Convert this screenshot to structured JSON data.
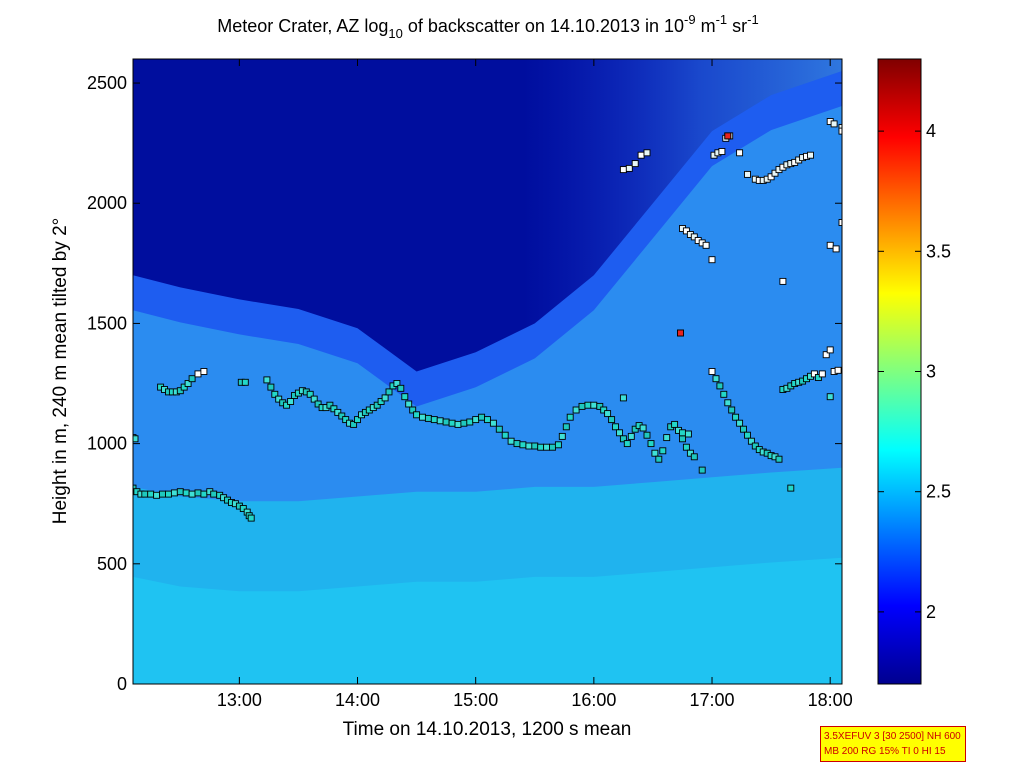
{
  "chart_data": {
    "type": "heatmap",
    "title": {
      "pre": "Meteor Crater, AZ log",
      "sub": "10",
      "mid": " of backscatter on 14.10.2013 in 10",
      "sup1": "-9",
      "mid2": " m",
      "sup2": "-1",
      "mid3": " sr",
      "sup3": "-1"
    },
    "xlabel": "Time on 14.10.2013, 1200 s mean",
    "ylabel": "Height in m, 240 m mean tilted by 2°",
    "xlim": [
      "12:06",
      "18:06"
    ],
    "ylim": [
      0,
      2600
    ],
    "x_ticks": [
      {
        "t": 13.0,
        "label": "13:00"
      },
      {
        "t": 14.0,
        "label": "14:00"
      },
      {
        "t": 15.0,
        "label": "15:00"
      },
      {
        "t": 16.0,
        "label": "16:00"
      },
      {
        "t": 17.0,
        "label": "17:00"
      },
      {
        "t": 18.0,
        "label": "18:00"
      }
    ],
    "y_ticks": [
      {
        "v": 0,
        "label": "0"
      },
      {
        "v": 500,
        "label": "500"
      },
      {
        "v": 1000,
        "label": "1000"
      },
      {
        "v": 1500,
        "label": "1500"
      },
      {
        "v": 2000,
        "label": "2000"
      },
      {
        "v": 2500,
        "label": "2500"
      }
    ],
    "colorbar": {
      "range": [
        1.7,
        4.3
      ],
      "colormap": "jet",
      "ticks": [
        {
          "v": 2,
          "label": "2"
        },
        {
          "v": 2.5,
          "label": "2.5"
        },
        {
          "v": 3,
          "label": "3"
        },
        {
          "v": 3.5,
          "label": "3.5"
        },
        {
          "v": 4,
          "label": "4"
        }
      ]
    },
    "field_columns": [
      {
        "t": "12:06",
        "bottom_layer_top": 820,
        "mixed_layer_top": 1700
      },
      {
        "t": "12:30",
        "bottom_layer_top": 780,
        "mixed_layer_top": 1650
      },
      {
        "t": "13:00",
        "bottom_layer_top": 760,
        "mixed_layer_top": 1600
      },
      {
        "t": "13:30",
        "bottom_layer_top": 760,
        "mixed_layer_top": 1560
      },
      {
        "t": "14:00",
        "bottom_layer_top": 780,
        "mixed_layer_top": 1480
      },
      {
        "t": "14:30",
        "bottom_layer_top": 800,
        "mixed_layer_top": 1300
      },
      {
        "t": "15:00",
        "bottom_layer_top": 800,
        "mixed_layer_top": 1380
      },
      {
        "t": "15:30",
        "bottom_layer_top": 820,
        "mixed_layer_top": 1500
      },
      {
        "t": "16:00",
        "bottom_layer_top": 820,
        "mixed_layer_top": 1700
      },
      {
        "t": "16:30",
        "bottom_layer_top": 840,
        "mixed_layer_top": 2000
      },
      {
        "t": "17:00",
        "bottom_layer_top": 860,
        "mixed_layer_top": 2300
      },
      {
        "t": "17:30",
        "bottom_layer_top": 880,
        "mixed_layer_top": 2450
      },
      {
        "t": "18:06",
        "bottom_layer_top": 900,
        "mixed_layer_top": 2550
      }
    ],
    "detections": [
      {
        "name": "lower layer",
        "points": [
          [
            "12:06",
            1025
          ],
          [
            "12:07",
            1020
          ],
          [
            "12:06",
            815
          ],
          [
            "12:08",
            800
          ],
          [
            "12:10",
            790
          ],
          [
            "12:12",
            790
          ],
          [
            "12:15",
            790
          ],
          [
            "12:18",
            785
          ],
          [
            "12:21",
            790
          ],
          [
            "12:24",
            790
          ],
          [
            "12:27",
            795
          ],
          [
            "12:30",
            800
          ],
          [
            "12:33",
            795
          ],
          [
            "12:36",
            790
          ],
          [
            "12:39",
            795
          ],
          [
            "12:42",
            790
          ],
          [
            "12:45",
            800
          ],
          [
            "12:47",
            790
          ],
          [
            "12:50",
            785
          ],
          [
            "12:52",
            775
          ],
          [
            "12:54",
            765
          ],
          [
            "12:56",
            755
          ],
          [
            "12:58",
            750
          ],
          [
            "13:00",
            740
          ],
          [
            "13:02",
            730
          ],
          [
            "13:04",
            715
          ],
          [
            "13:05",
            700
          ],
          [
            "13:06",
            690
          ]
        ]
      },
      {
        "name": "upper layer",
        "points": [
          [
            "12:20",
            1235
          ],
          [
            "12:22",
            1225
          ],
          [
            "12:24",
            1215
          ],
          [
            "12:26",
            1215
          ],
          [
            "12:28",
            1215
          ],
          [
            "12:30",
            1220
          ],
          [
            "12:32",
            1235
          ],
          [
            "12:34",
            1250
          ],
          [
            "12:36",
            1270
          ],
          [
            "12:39",
            1290
          ],
          [
            "12:42",
            1300
          ],
          [
            "13:01",
            1255
          ],
          [
            "13:03",
            1255
          ],
          [
            "13:14",
            1265
          ],
          [
            "13:16",
            1235
          ],
          [
            "13:18",
            1205
          ],
          [
            "13:20",
            1185
          ],
          [
            "13:22",
            1170
          ],
          [
            "13:24",
            1160
          ],
          [
            "13:26",
            1175
          ],
          [
            "13:28",
            1200
          ],
          [
            "13:30",
            1210
          ],
          [
            "13:32",
            1220
          ],
          [
            "13:34",
            1215
          ],
          [
            "13:36",
            1205
          ],
          [
            "13:38",
            1185
          ],
          [
            "13:40",
            1165
          ],
          [
            "13:42",
            1150
          ],
          [
            "13:44",
            1150
          ],
          [
            "13:46",
            1160
          ],
          [
            "13:48",
            1145
          ],
          [
            "13:50",
            1130
          ],
          [
            "13:52",
            1115
          ],
          [
            "13:54",
            1100
          ],
          [
            "13:56",
            1085
          ],
          [
            "13:58",
            1080
          ],
          [
            "14:00",
            1100
          ],
          [
            "14:02",
            1120
          ],
          [
            "14:04",
            1130
          ],
          [
            "14:06",
            1140
          ],
          [
            "14:08",
            1150
          ],
          [
            "14:10",
            1160
          ],
          [
            "14:12",
            1175
          ],
          [
            "14:14",
            1190
          ],
          [
            "14:16",
            1215
          ],
          [
            "14:18",
            1240
          ],
          [
            "14:20",
            1250
          ],
          [
            "14:22",
            1230
          ],
          [
            "14:24",
            1195
          ],
          [
            "14:26",
            1165
          ],
          [
            "14:28",
            1140
          ],
          [
            "14:30",
            1120
          ],
          [
            "14:33",
            1110
          ],
          [
            "14:36",
            1105
          ],
          [
            "14:39",
            1100
          ],
          [
            "14:42",
            1095
          ],
          [
            "14:45",
            1090
          ],
          [
            "14:48",
            1085
          ],
          [
            "14:51",
            1080
          ],
          [
            "14:54",
            1085
          ],
          [
            "14:57",
            1090
          ],
          [
            "15:00",
            1100
          ],
          [
            "15:03",
            1110
          ],
          [
            "15:06",
            1100
          ],
          [
            "15:09",
            1085
          ],
          [
            "15:12",
            1060
          ],
          [
            "15:15",
            1035
          ],
          [
            "15:18",
            1010
          ],
          [
            "15:21",
            1000
          ],
          [
            "15:24",
            995
          ],
          [
            "15:27",
            990
          ],
          [
            "15:30",
            990
          ],
          [
            "15:33",
            985
          ],
          [
            "15:36",
            985
          ],
          [
            "15:39",
            985
          ],
          [
            "15:42",
            995
          ],
          [
            "15:44",
            1030
          ],
          [
            "15:46",
            1070
          ],
          [
            "15:48",
            1110
          ],
          [
            "15:51",
            1140
          ],
          [
            "15:54",
            1155
          ],
          [
            "15:57",
            1160
          ],
          [
            "16:00",
            1160
          ],
          [
            "16:03",
            1155
          ],
          [
            "16:05",
            1140
          ],
          [
            "16:07",
            1125
          ],
          [
            "16:09",
            1100
          ],
          [
            "16:11",
            1070
          ],
          [
            "16:13",
            1045
          ],
          [
            "16:15",
            1020
          ],
          [
            "16:17",
            1000
          ],
          [
            "16:19",
            1030
          ],
          [
            "16:21",
            1060
          ],
          [
            "16:23",
            1075
          ],
          [
            "16:25",
            1065
          ],
          [
            "16:27",
            1035
          ],
          [
            "16:29",
            1000
          ],
          [
            "16:31",
            960
          ],
          [
            "16:33",
            935
          ],
          [
            "16:35",
            970
          ],
          [
            "16:37",
            1025
          ],
          [
            "16:39",
            1070
          ],
          [
            "16:41",
            1080
          ],
          [
            "16:43",
            1055
          ],
          [
            "16:45",
            1020
          ],
          [
            "16:47",
            985
          ],
          [
            "16:49",
            960
          ],
          [
            "16:51",
            945
          ],
          [
            "16:45",
            1045
          ],
          [
            "16:48",
            1040
          ],
          [
            "16:55",
            890
          ],
          [
            "17:00",
            1300
          ],
          [
            "17:02",
            1270
          ],
          [
            "17:04",
            1240
          ],
          [
            "17:06",
            1205
          ],
          [
            "17:08",
            1170
          ],
          [
            "17:10",
            1140
          ],
          [
            "17:12",
            1110
          ],
          [
            "17:14",
            1085
          ],
          [
            "17:16",
            1060
          ],
          [
            "17:18",
            1035
          ],
          [
            "17:20",
            1010
          ],
          [
            "17:22",
            990
          ],
          [
            "17:24",
            975
          ],
          [
            "17:26",
            965
          ],
          [
            "17:28",
            960
          ],
          [
            "17:30",
            950
          ],
          [
            "17:32",
            945
          ],
          [
            "17:34",
            935
          ],
          [
            "17:36",
            1225
          ],
          [
            "17:38",
            1230
          ],
          [
            "17:40",
            1240
          ],
          [
            "17:42",
            1250
          ],
          [
            "17:44",
            1255
          ],
          [
            "17:46",
            1260
          ],
          [
            "17:48",
            1270
          ],
          [
            "17:50",
            1280
          ],
          [
            "17:52",
            1290
          ],
          [
            "17:54",
            1275
          ],
          [
            "17:56",
            1290
          ],
          [
            "17:58",
            1370
          ],
          [
            "18:00",
            1390
          ],
          [
            "18:02",
            1300
          ],
          [
            "18:04",
            1305
          ],
          [
            "17:40",
            815
          ],
          [
            "18:00",
            1195
          ]
        ]
      },
      {
        "name": "elevated aerosol layer",
        "points": [
          [
            "16:15",
            2140
          ],
          [
            "16:18",
            2145
          ],
          [
            "16:21",
            2165
          ],
          [
            "16:24",
            2200
          ],
          [
            "16:27",
            2210
          ],
          [
            "16:45",
            1895
          ],
          [
            "16:47",
            1885
          ],
          [
            "16:49",
            1870
          ],
          [
            "16:51",
            1860
          ],
          [
            "16:53",
            1845
          ],
          [
            "16:55",
            1835
          ],
          [
            "16:57",
            1825
          ],
          [
            "17:00",
            1765
          ],
          [
            "17:01",
            2200
          ],
          [
            "17:03",
            2210
          ],
          [
            "17:05",
            2215
          ],
          [
            "17:07",
            2270
          ],
          [
            "17:09",
            2280
          ],
          [
            "17:14",
            2210
          ],
          [
            "17:18",
            2120
          ],
          [
            "17:22",
            2100
          ],
          [
            "17:24",
            2095
          ],
          [
            "17:26",
            2095
          ],
          [
            "17:28",
            2100
          ],
          [
            "17:30",
            2110
          ],
          [
            "17:32",
            2125
          ],
          [
            "17:34",
            2140
          ],
          [
            "17:36",
            2150
          ],
          [
            "17:38",
            2160
          ],
          [
            "17:40",
            2165
          ],
          [
            "17:42",
            2170
          ],
          [
            "17:44",
            2180
          ],
          [
            "17:46",
            2190
          ],
          [
            "17:48",
            2195
          ],
          [
            "17:50",
            2200
          ],
          [
            "17:36",
            1675
          ],
          [
            "18:00",
            2340
          ],
          [
            "18:02",
            2330
          ],
          [
            "18:06",
            2315
          ],
          [
            "18:06",
            2300
          ],
          [
            "18:00",
            1825
          ],
          [
            "18:03",
            1810
          ],
          [
            "18:06",
            1920
          ],
          [
            "16:15",
            1190
          ],
          [
            "17:08",
            2280
          ],
          [
            "16:44",
            1460
          ]
        ]
      }
    ],
    "high_values": [
      {
        "t": "17:08",
        "h": 2280,
        "color": "#e8231f"
      },
      {
        "t": "16:44",
        "h": 1460,
        "color": "#e8231f"
      }
    ]
  },
  "info_box": {
    "line1": "3.5XEFUV 3 [30 2500] NH 600",
    "line2": "MB 200 RG 15% TI 0 HI 15"
  }
}
